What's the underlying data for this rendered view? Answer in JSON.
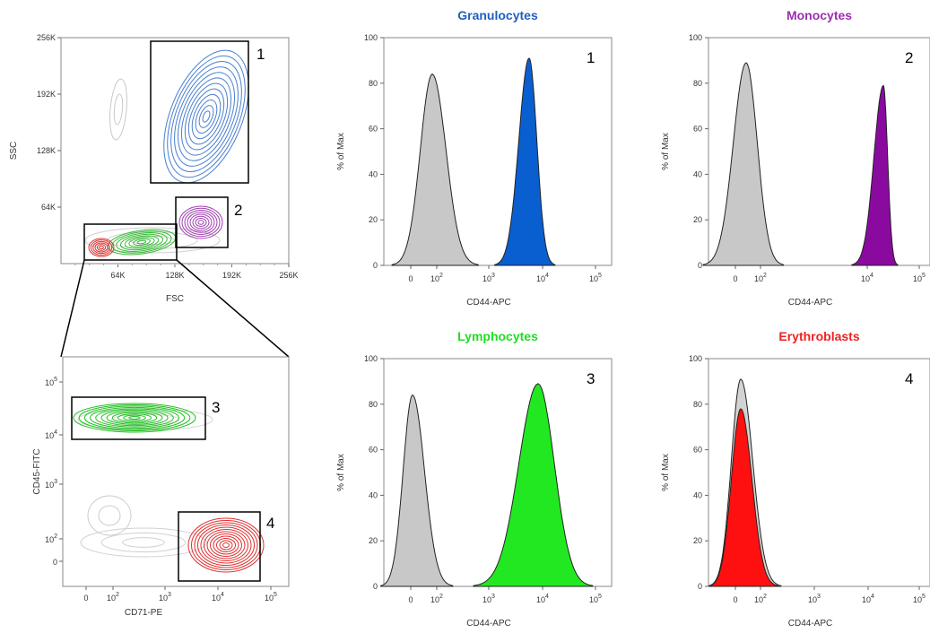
{
  "chart_data": [
    {
      "id": "scatter1",
      "type": "contour",
      "xlabel": "FSC",
      "ylabel": "SSC",
      "x_ticks": [
        "64K",
        "128K",
        "192K",
        "256K"
      ],
      "y_ticks": [
        "64K",
        "128K",
        "192K",
        "256K"
      ],
      "xlim": [
        0,
        262144
      ],
      "ylim": [
        0,
        262144
      ],
      "gates": [
        {
          "label": "1",
          "color": "#4a7fd0",
          "x": [
            100000,
            208000
          ],
          "y": [
            92000,
            262000
          ],
          "center": [
            160000,
            165000
          ]
        },
        {
          "label": "2",
          "color": "#a040b0",
          "x": [
            132000,
            190000
          ],
          "y": [
            18000,
            65000
          ],
          "center": [
            162000,
            42000
          ]
        },
        {
          "label": "",
          "color": "#000000",
          "x": [
            25000,
            132000
          ],
          "y": [
            3000,
            44000
          ]
        }
      ]
    },
    {
      "id": "scatter2",
      "type": "contour",
      "xlabel": "CD71-PE",
      "ylabel": "CD45-FITC",
      "x_ticks": [
        "0",
        "10^2",
        "10^3",
        "10^4",
        "10^5"
      ],
      "y_ticks": [
        "0",
        "10^2",
        "10^3",
        "10^4",
        "10^5"
      ],
      "gates": [
        {
          "label": "3",
          "color": "#22c022",
          "center": [
            "10^2",
            "2×10^4"
          ]
        },
        {
          "label": "4",
          "color": "#e03030",
          "center": [
            "2×10^4",
            "10^2"
          ]
        }
      ]
    },
    {
      "id": "hist1",
      "type": "histogram",
      "title": "Granulocytes",
      "title_color": "#1f5fbf",
      "gate_label": "1",
      "xlabel": "CD44-APC",
      "ylabel": "% of Max",
      "x_ticks": [
        "0",
        "10^2",
        "10^3",
        "10^4",
        "10^5"
      ],
      "y_ticks": [
        "0",
        "20",
        "40",
        "60",
        "80",
        "100"
      ],
      "ylim": [
        0,
        100
      ],
      "series": [
        {
          "color": "#c8c8c8",
          "peak_x": "10^2",
          "peak_y": 84
        },
        {
          "color": "#0a5fd0",
          "peak_x": "5×10^3",
          "peak_y": 91
        }
      ]
    },
    {
      "id": "hist2",
      "type": "histogram",
      "title": "Monocytes",
      "title_color": "#9b2fae",
      "gate_label": "2",
      "xlabel": "CD44-APC",
      "ylabel": "% of Max",
      "x_ticks": [
        "0",
        "10^2",
        "10^4",
        "10^5"
      ],
      "y_ticks": [
        "0",
        "20",
        "40",
        "60",
        "80",
        "100"
      ],
      "ylim": [
        0,
        100
      ],
      "series": [
        {
          "color": "#c8c8c8",
          "peak_x": "50",
          "peak_y": 89
        },
        {
          "color": "#8a0aa0",
          "peak_x": "2×10^4",
          "peak_y": 79
        }
      ]
    },
    {
      "id": "hist3",
      "type": "histogram",
      "title": "Lymphocytes",
      "title_color": "#22dd22",
      "gate_label": "3",
      "xlabel": "CD44-APC",
      "ylabel": "% of Max",
      "x_ticks": [
        "0",
        "10^2",
        "10^3",
        "10^4",
        "10^5"
      ],
      "y_ticks": [
        "0",
        "20",
        "40",
        "60",
        "80",
        "100"
      ],
      "ylim": [
        0,
        100
      ],
      "series": [
        {
          "color": "#c8c8c8",
          "peak_x": "10",
          "peak_y": 84
        },
        {
          "color": "#22e822",
          "peak_x": "10^4",
          "peak_y": 89
        }
      ]
    },
    {
      "id": "hist4",
      "type": "histogram",
      "title": "Erythroblasts",
      "title_color": "#ee2222",
      "gate_label": "4",
      "xlabel": "CD44-APC",
      "ylabel": "% of Max",
      "x_ticks": [
        "0",
        "10^2",
        "10^3",
        "10^4",
        "10^5"
      ],
      "y_ticks": [
        "0",
        "20",
        "40",
        "60",
        "80",
        "100"
      ],
      "ylim": [
        0,
        100
      ],
      "series": [
        {
          "color": "#c8c8c8",
          "peak_x": "30",
          "peak_y": 91
        },
        {
          "color": "#ff1010",
          "peak_x": "30",
          "peak_y": 78
        }
      ]
    }
  ]
}
